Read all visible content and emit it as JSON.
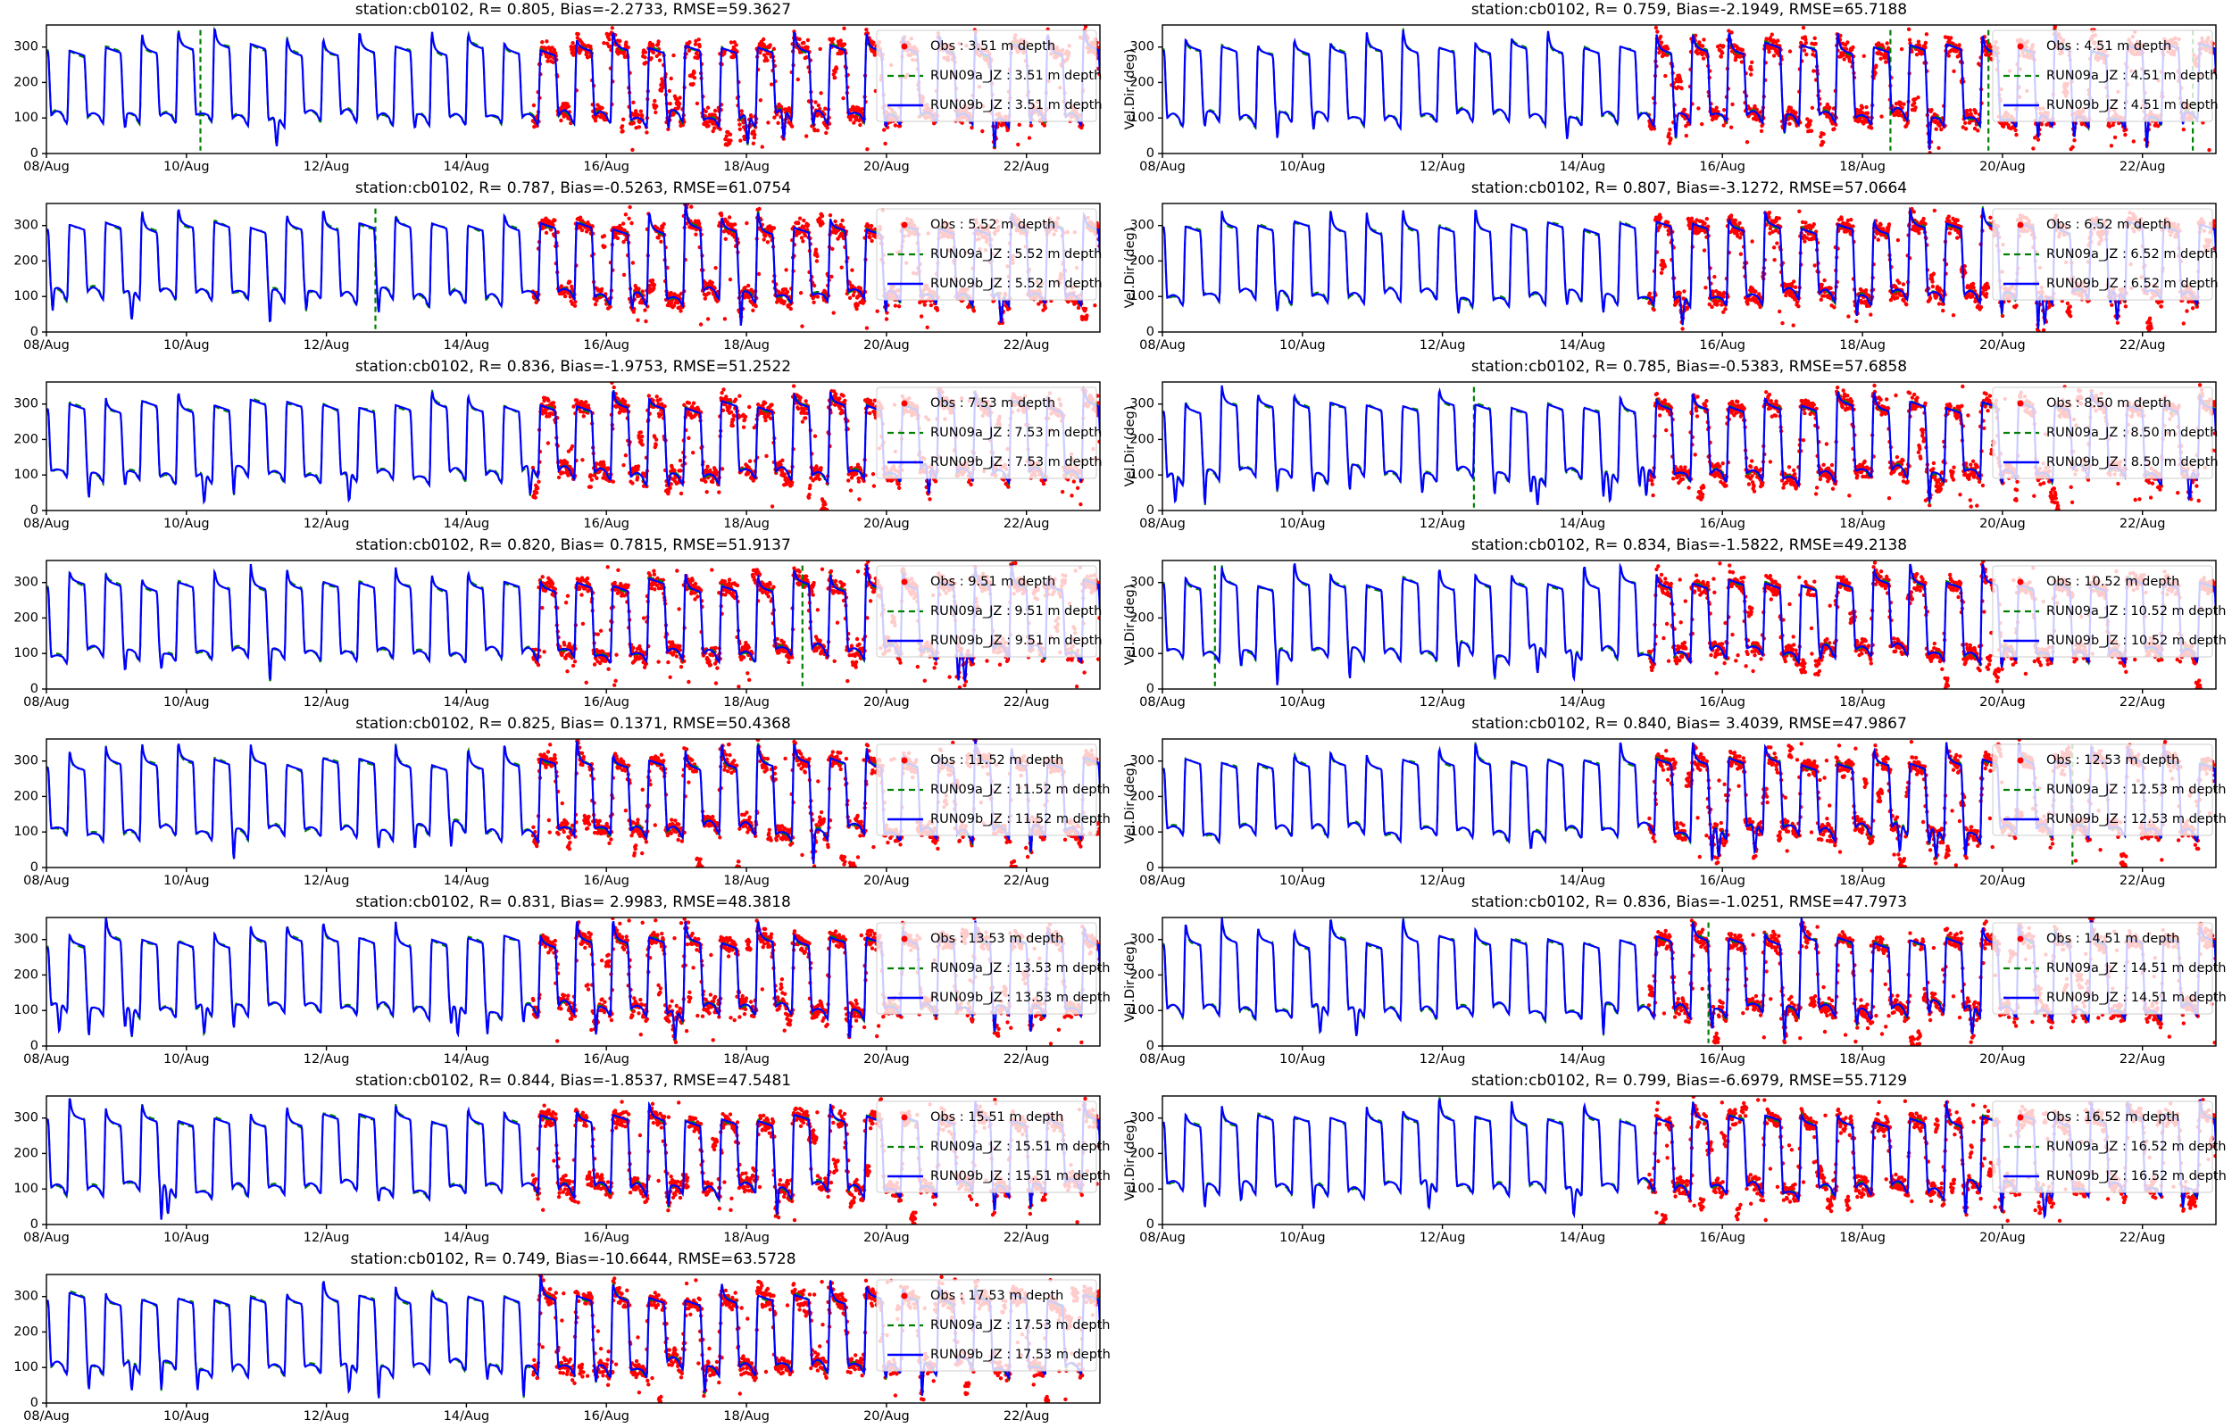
{
  "figure": {
    "background": "#ffffff",
    "rows": 8,
    "columns": 2,
    "xlim_days": [
      0,
      15.05
    ],
    "ylim": [
      0,
      362
    ],
    "x_tick_days": [
      0,
      2,
      4,
      6,
      8,
      10,
      12,
      14
    ],
    "x_tick_labels": [
      "08/Aug",
      "10/Aug",
      "12/Aug",
      "14/Aug",
      "16/Aug",
      "18/Aug",
      "20/Aug",
      "22/Aug"
    ],
    "y_ticks": [
      0,
      100,
      200,
      300
    ]
  },
  "chart_data": {
    "type": "line+scatter",
    "station": "cb0102",
    "title_pattern": "station:cb0102, R= <R>, Bias=<bias>, RMSE=<rmse>",
    "xlabel": "",
    "ylabel": "Vel.Dir (deg)",
    "x_axis_start": "08/Aug",
    "x_axis_end": "23/Aug",
    "x_tick_labels": [
      "08/Aug",
      "10/Aug",
      "12/Aug",
      "14/Aug",
      "16/Aug",
      "18/Aug",
      "20/Aug",
      "22/Aug"
    ],
    "y_ticks": [
      0,
      100,
      200,
      300
    ],
    "ylim": [
      0,
      362
    ],
    "legend_position": "upper right",
    "series_colors": {
      "obs": "#ff0000",
      "run09a": "#008000",
      "run09b": "#0000ff",
      "legend_border": "#cccccc"
    },
    "series_styles": {
      "obs": "red dots",
      "run09a": "green dashed line",
      "run09b": "blue solid line"
    },
    "tide_wave": {
      "period_days": 0.5175,
      "phase_offset": 0.36,
      "high_plateau_deg": [
        288,
        312
      ],
      "low_plateau_deg": [
        86,
        112
      ],
      "overshoot_max_deg": 63,
      "undershoot_max_deg": 95,
      "description": "semidiurnal square-like oscillation of current direction between ~100 deg and ~300 deg with overshoot spikes to ~360 and occasional dips to ~0"
    },
    "obs_points": {
      "start_day": 6.95,
      "end_day": 15.05,
      "step_days": 0.006,
      "noise_sigma_deg": 12,
      "outlier_fraction": 0.045,
      "time_jitter_days": 0.04
    },
    "panels": [
      {
        "id": "cb0102-3.51m",
        "depth_m": 3.51,
        "R": 0.805,
        "bias": -2.2733,
        "rmse": 59.3627,
        "title": "station:cb0102, R= 0.805, Bias=-2.2733, RMSE=59.3627",
        "legend": [
          "Obs : 3.51 m depth",
          "RUN09a_JZ : 3.51 m depth",
          "RUN09b_JZ : 3.51 m depth"
        ],
        "green_spike_days": [
          2.2
        ],
        "seed": 11
      },
      {
        "id": "cb0102-4.51m",
        "depth_m": 4.51,
        "R": 0.759,
        "bias": -2.1949,
        "rmse": 65.7188,
        "title": "station:cb0102, R= 0.759, Bias=-2.1949, RMSE=65.7188",
        "legend": [
          "Obs : 4.51 m depth",
          "RUN09a_JZ : 4.51 m depth",
          "RUN09b_JZ : 4.51 m depth"
        ],
        "green_spike_days": [
          10.4,
          11.8,
          14.72
        ],
        "seed": 22
      },
      {
        "id": "cb0102-5.52m",
        "depth_m": 5.52,
        "R": 0.787,
        "bias": -0.5263,
        "rmse": 61.0754,
        "title": "station:cb0102, R= 0.787, Bias=-0.5263, RMSE=61.0754",
        "legend": [
          "Obs : 5.52 m depth",
          "RUN09a_JZ : 5.52 m depth",
          "RUN09b_JZ : 5.52 m depth"
        ],
        "green_spike_days": [
          4.7
        ],
        "seed": 33
      },
      {
        "id": "cb0102-6.52m",
        "depth_m": 6.52,
        "R": 0.807,
        "bias": -3.1272,
        "rmse": 57.0664,
        "title": "station:cb0102, R= 0.807, Bias=-3.1272, RMSE=57.0664",
        "legend": [
          "Obs : 6.52 m depth",
          "RUN09a_JZ : 6.52 m depth",
          "RUN09b_JZ : 6.52 m depth"
        ],
        "green_spike_days": [],
        "seed": 44
      },
      {
        "id": "cb0102-7.53m",
        "depth_m": 7.53,
        "R": 0.836,
        "bias": -1.9753,
        "rmse": 51.2522,
        "title": "station:cb0102, R= 0.836, Bias=-1.9753, RMSE=51.2522",
        "legend": [
          "Obs : 7.53 m depth",
          "RUN09a_JZ : 7.53 m depth",
          "RUN09b_JZ : 7.53 m depth"
        ],
        "green_spike_days": [],
        "seed": 55
      },
      {
        "id": "cb0102-8.50m",
        "depth_m": 8.5,
        "R": 0.785,
        "bias": -0.5383,
        "rmse": 57.6858,
        "title": "station:cb0102, R= 0.785, Bias=-0.5383, RMSE=57.6858",
        "legend": [
          "Obs : 8.50 m depth",
          "RUN09a_JZ : 8.50 m depth",
          "RUN09b_JZ : 8.50 m depth"
        ],
        "green_spike_days": [
          4.45
        ],
        "seed": 66
      },
      {
        "id": "cb0102-9.51m",
        "depth_m": 9.51,
        "R": 0.82,
        "bias": 0.7815,
        "rmse": 51.9137,
        "title": "station:cb0102, R= 0.820, Bias= 0.7815, RMSE=51.9137",
        "legend": [
          "Obs : 9.51 m depth",
          "RUN09a_JZ : 9.51 m depth",
          "RUN09b_JZ : 9.51 m depth"
        ],
        "green_spike_days": [
          10.8
        ],
        "seed": 77
      },
      {
        "id": "cb0102-10.52m",
        "depth_m": 10.52,
        "R": 0.834,
        "bias": -1.5822,
        "rmse": 49.2138,
        "title": "station:cb0102, R= 0.834, Bias=-1.5822, RMSE=49.2138",
        "legend": [
          "Obs : 10.52 m depth",
          "RUN09a_JZ : 10.52 m depth",
          "RUN09b_JZ : 10.52 m depth"
        ],
        "green_spike_days": [
          0.75
        ],
        "seed": 88
      },
      {
        "id": "cb0102-11.52m",
        "depth_m": 11.52,
        "R": 0.825,
        "bias": 0.1371,
        "rmse": 50.4368,
        "title": "station:cb0102, R= 0.825, Bias= 0.1371, RMSE=50.4368",
        "legend": [
          "Obs : 11.52 m depth",
          "RUN09a_JZ : 11.52 m depth",
          "RUN09b_JZ : 11.52 m depth"
        ],
        "green_spike_days": [],
        "seed": 99
      },
      {
        "id": "cb0102-12.53m",
        "depth_m": 12.53,
        "R": 0.84,
        "bias": 3.4039,
        "rmse": 47.9867,
        "title": "station:cb0102, R= 0.840, Bias= 3.4039, RMSE=47.9867",
        "legend": [
          "Obs : 12.53 m depth",
          "RUN09a_JZ : 12.53 m depth",
          "RUN09b_JZ : 12.53 m depth"
        ],
        "green_spike_days": [
          13.0
        ],
        "seed": 110
      },
      {
        "id": "cb0102-13.53m",
        "depth_m": 13.53,
        "R": 0.831,
        "bias": 2.9983,
        "rmse": 48.3818,
        "title": "station:cb0102, R= 0.831, Bias= 2.9983, RMSE=48.3818",
        "legend": [
          "Obs : 13.53 m depth",
          "RUN09a_JZ : 13.53 m depth",
          "RUN09b_JZ : 13.53 m depth"
        ],
        "green_spike_days": [],
        "seed": 121
      },
      {
        "id": "cb0102-14.51m",
        "depth_m": 14.51,
        "R": 0.836,
        "bias": -1.0251,
        "rmse": 47.7973,
        "title": "station:cb0102, R= 0.836, Bias=-1.0251, RMSE=47.7973",
        "legend": [
          "Obs : 14.51 m depth",
          "RUN09a_JZ : 14.51 m depth",
          "RUN09b_JZ : 14.51 m depth"
        ],
        "green_spike_days": [
          7.8
        ],
        "seed": 132
      },
      {
        "id": "cb0102-15.51m",
        "depth_m": 15.51,
        "R": 0.844,
        "bias": -1.8537,
        "rmse": 47.5481,
        "title": "station:cb0102, R= 0.844, Bias=-1.8537, RMSE=47.5481",
        "legend": [
          "Obs : 15.51 m depth",
          "RUN09a_JZ : 15.51 m depth",
          "RUN09b_JZ : 15.51 m depth"
        ],
        "green_spike_days": [],
        "seed": 143
      },
      {
        "id": "cb0102-16.52m",
        "depth_m": 16.52,
        "R": 0.799,
        "bias": -6.6979,
        "rmse": 55.7129,
        "title": "station:cb0102, R= 0.799, Bias=-6.6979, RMSE=55.7129",
        "legend": [
          "Obs : 16.52 m depth",
          "RUN09a_JZ : 16.52 m depth",
          "RUN09b_JZ : 16.52 m depth"
        ],
        "green_spike_days": [],
        "seed": 154
      },
      {
        "id": "cb0102-17.53m",
        "depth_m": 17.53,
        "R": 0.749,
        "bias": -10.6644,
        "rmse": 63.5728,
        "title": "station:cb0102, R= 0.749, Bias=-10.6644, RMSE=63.5728",
        "legend": [
          "Obs : 17.53 m depth",
          "RUN09a_JZ : 17.53 m depth",
          "RUN09b_JZ : 17.53 m depth"
        ],
        "green_spike_days": [],
        "seed": 165
      }
    ]
  }
}
